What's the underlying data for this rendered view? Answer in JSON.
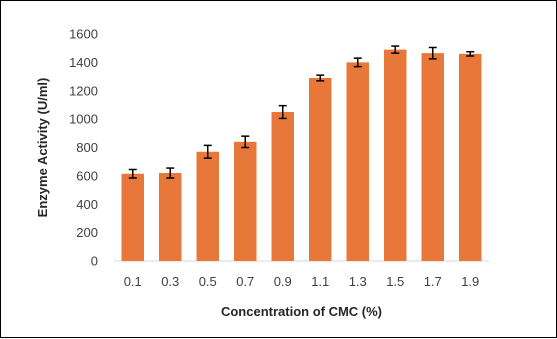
{
  "chart_data": {
    "type": "bar",
    "title": "",
    "xlabel": "Concentration of CMC (%)",
    "ylabel": "Enzyme Activity (U/ml)",
    "categories": [
      "0.1",
      "0.3",
      "0.5",
      "0.7",
      "0.9",
      "1.1",
      "1.3",
      "1.5",
      "1.7",
      "1.9"
    ],
    "values": [
      615,
      620,
      770,
      840,
      1050,
      1290,
      1400,
      1490,
      1465,
      1460
    ],
    "errors": [
      30,
      35,
      45,
      40,
      45,
      20,
      30,
      25,
      40,
      15
    ],
    "ylim": [
      0,
      1600
    ],
    "yticks": [
      "0",
      "200",
      "400",
      "600",
      "800",
      "1000",
      "1200",
      "1400",
      "1600"
    ],
    "grid": false,
    "legend": "none",
    "bar_color": "#E8773A",
    "error_bar_color": "#000000",
    "axis_color": "#D9D9D9"
  }
}
